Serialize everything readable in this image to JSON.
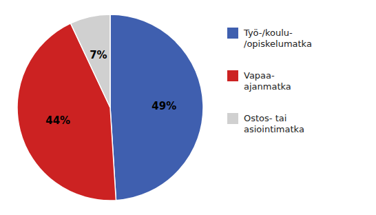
{
  "chart_data": {
    "type": "pie",
    "categories": [
      "Työ-/koulu-\n/opiskelumatka",
      "Vapaa-\najanmatka",
      "Ostos- tai\nasiointimatka"
    ],
    "values": [
      49,
      44,
      7
    ],
    "value_labels": [
      "49%",
      "44%",
      "7%"
    ],
    "colors": [
      "#3f5faf",
      "#cc2222",
      "#d0d0d0"
    ],
    "data_labels": true,
    "legend": "right"
  }
}
